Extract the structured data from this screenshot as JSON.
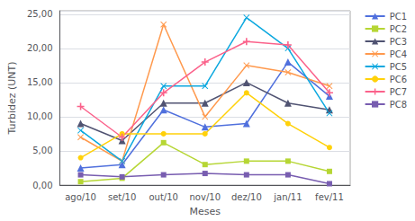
{
  "chart_data": {
    "type": "line",
    "xlabel": "Meses",
    "ylabel": "Turbidez (UNT)",
    "categories": [
      "ago/10",
      "set/10",
      "out/10",
      "nov/10",
      "dez/10",
      "jan/11",
      "fev/11"
    ],
    "series": [
      {
        "name": "PC1",
        "marker": "triangle",
        "values": [
          2.5,
          3.0,
          11.0,
          8.5,
          9.0,
          18.0,
          13.0
        ]
      },
      {
        "name": "PC2",
        "marker": "square",
        "values": [
          0.5,
          1.0,
          6.2,
          3.0,
          3.5,
          3.5,
          2.0
        ]
      },
      {
        "name": "PC3",
        "marker": "triangle",
        "values": [
          9.0,
          6.5,
          12.0,
          12.0,
          15.0,
          12.0,
          11.0
        ]
      },
      {
        "name": "PC4",
        "marker": "x",
        "values": [
          7.0,
          3.5,
          23.5,
          10.0,
          17.5,
          16.5,
          14.5
        ]
      },
      {
        "name": "PC5",
        "marker": "x",
        "values": [
          8.0,
          3.5,
          14.5,
          14.5,
          24.5,
          20.0,
          10.5
        ]
      },
      {
        "name": "PC6",
        "marker": "circle",
        "values": [
          4.0,
          7.5,
          7.5,
          7.5,
          13.5,
          9.0,
          5.5
        ]
      },
      {
        "name": "PC7",
        "marker": "plus",
        "values": [
          11.5,
          7.0,
          13.5,
          18.0,
          21.0,
          20.5,
          13.5
        ]
      },
      {
        "name": "PC8",
        "marker": "square",
        "values": [
          1.5,
          1.2,
          1.5,
          1.7,
          1.5,
          1.5,
          0.2
        ]
      }
    ],
    "ylim": [
      0,
      25.5
    ],
    "yticks": [
      {
        "value": 0,
        "label": "0,00"
      },
      {
        "value": 5,
        "label": "5,00"
      },
      {
        "value": 10,
        "label": "10,00"
      },
      {
        "value": 15,
        "label": "15,00"
      },
      {
        "value": 20,
        "label": "20,00"
      },
      {
        "value": 25,
        "label": "25,00"
      }
    ],
    "grid": true,
    "legend": "right"
  }
}
